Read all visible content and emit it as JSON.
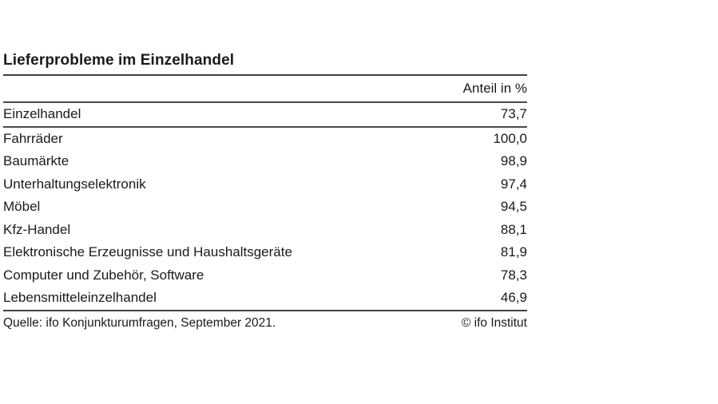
{
  "figure": {
    "title": "Lieferprobleme im Einzelhandel",
    "column_header": "Anteil in %",
    "summary": {
      "label": "Einzelhandel",
      "value": "73,7"
    },
    "rows": [
      {
        "label": "Fahrräder",
        "value": "100,0"
      },
      {
        "label": "Baumärkte",
        "value": "98,9"
      },
      {
        "label": "Unterhaltungselektronik",
        "value": "97,4"
      },
      {
        "label": "Möbel",
        "value": "94,5"
      },
      {
        "label": "Kfz-Handel",
        "value": "88,1"
      },
      {
        "label": "Elektronische Erzeugnisse und Haushaltsgeräte",
        "value": "81,9"
      },
      {
        "label": "Computer und Zubehör, Software",
        "value": "78,3"
      },
      {
        "label": "Lebensmitteleinzelhandel",
        "value": "46,9"
      }
    ],
    "source": "Quelle: ifo Konjunkturumfragen, September 2021.",
    "copyright": "© ifo Institut"
  },
  "colors": {
    "text": "#1a1a1a",
    "rule_heavy": "#3f3f3f",
    "rule_medium": "#4a4a4a",
    "background": "#ffffff"
  },
  "chart_data": {
    "type": "table",
    "title": "Lieferprobleme im Einzelhandel",
    "value_label": "Anteil in %",
    "categories": [
      "Einzelhandel",
      "Fahrräder",
      "Baumärkte",
      "Unterhaltungselektronik",
      "Möbel",
      "Kfz-Handel",
      "Elektronische Erzeugnisse und Haushaltsgeräte",
      "Computer und Zubehör, Software",
      "Lebensmitteleinzelhandel"
    ],
    "values": [
      73.7,
      100.0,
      98.9,
      97.4,
      94.5,
      88.1,
      81.9,
      78.3,
      46.9
    ],
    "value_unit": "percent",
    "decimal_separator": ",",
    "layout": "single value column, right-aligned; first category is summary row separated by rule",
    "source": "Quelle: ifo Konjunkturumfragen, September 2021.",
    "copyright": "© ifo Institut"
  }
}
